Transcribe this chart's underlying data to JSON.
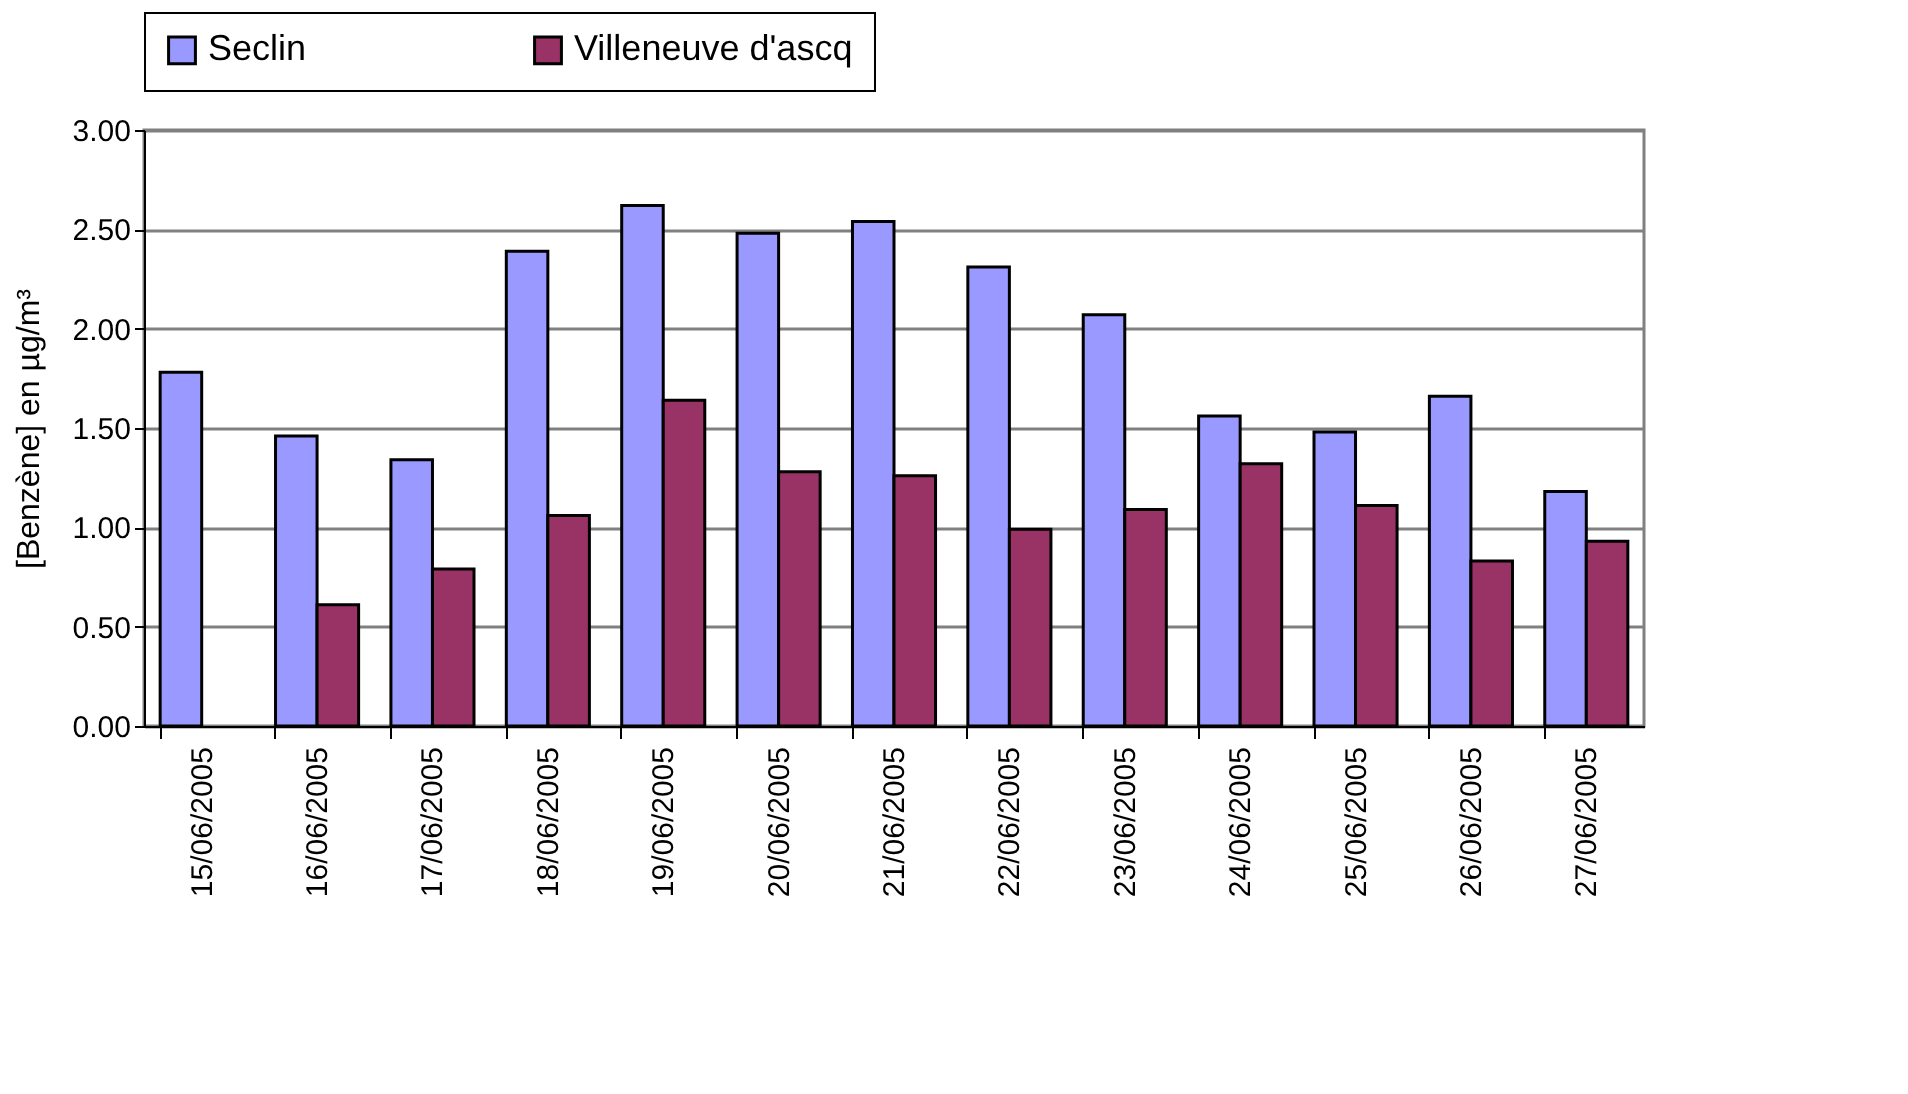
{
  "chart_data": {
    "type": "bar",
    "ylabel": "[Benzène] en µg/m³",
    "categories": [
      "15/06/2005",
      "16/06/2005",
      "17/06/2005",
      "18/06/2005",
      "19/06/2005",
      "20/06/2005",
      "21/06/2005",
      "22/06/2005",
      "23/06/2005",
      "24/06/2005",
      "25/06/2005",
      "26/06/2005",
      "27/06/2005"
    ],
    "series": [
      {
        "name": "Seclin",
        "color": "#9999ff",
        "values": [
          1.78,
          1.46,
          1.34,
          2.39,
          2.62,
          2.48,
          2.54,
          2.31,
          2.07,
          1.56,
          1.48,
          1.66,
          1.18
        ]
      },
      {
        "name": "Villeneuve d'ascq",
        "color": "#993366",
        "values": [
          null,
          0.61,
          0.79,
          1.06,
          1.64,
          1.28,
          1.26,
          0.99,
          1.09,
          1.32,
          1.11,
          0.83,
          0.93
        ]
      }
    ],
    "ylim": [
      0,
      3
    ],
    "yticks": [
      {
        "value": 0,
        "label": "0.00"
      },
      {
        "value": 0.5,
        "label": "0.50"
      },
      {
        "value": 1,
        "label": "1.00"
      },
      {
        "value": 1.5,
        "label": "1.50"
      },
      {
        "value": 2,
        "label": "2.00"
      },
      {
        "value": 2.5,
        "label": "2.50"
      },
      {
        "value": 3,
        "label": "3.00"
      }
    ],
    "grid": "y",
    "legend": "top"
  }
}
